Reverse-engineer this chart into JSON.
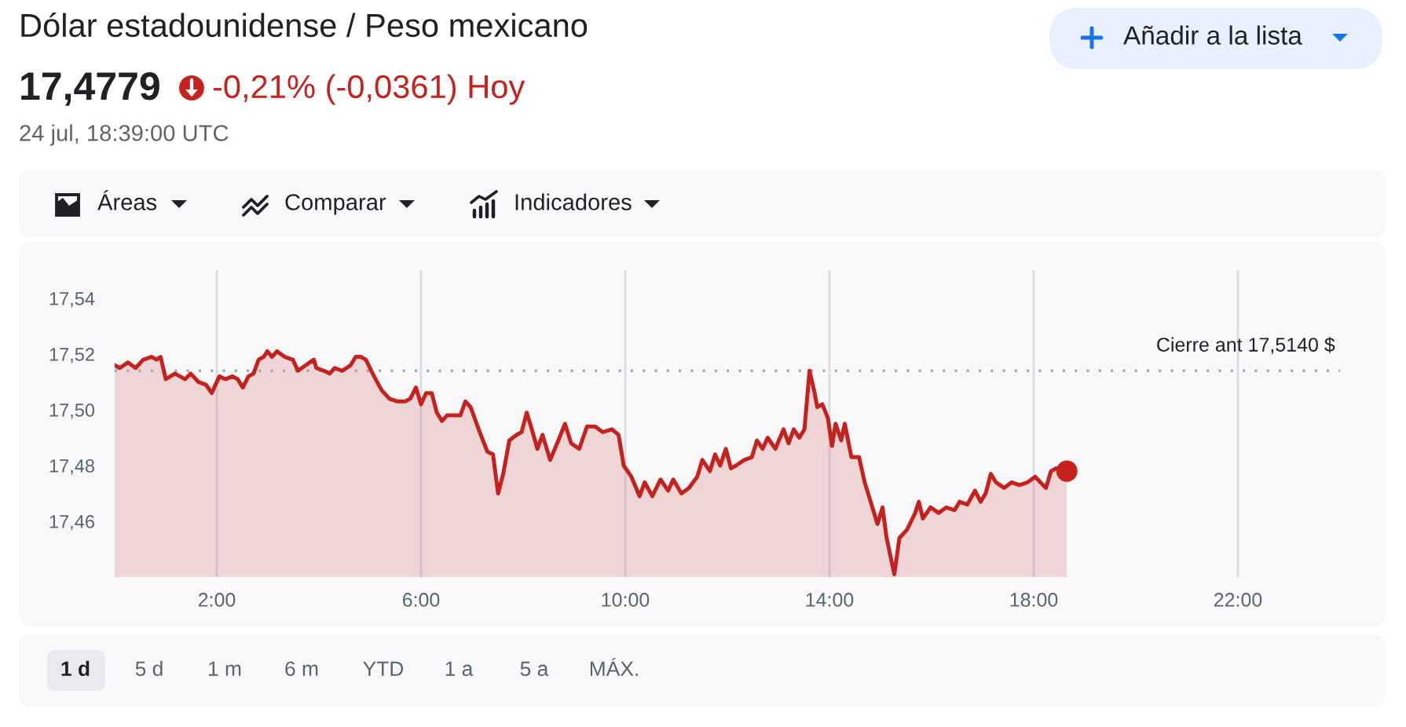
{
  "chart_data": {
    "type": "area",
    "title": "Dólar estadounidense / Peso mexicano",
    "subtitle": "24 jul, 18:39:00 UTC",
    "annotations": [
      "17,4779",
      "-0,21% (-0,0361) Hoy",
      "Añadir a la lista",
      "Áreas",
      "Comparar",
      "Indicadores",
      "1 d",
      "5 d",
      "1 m",
      "6 m",
      "YTD",
      "1 a",
      "5 a",
      "MÁX."
    ],
    "series": [
      {
        "color": "#c5221f",
        "x": [
          0.0,
          0.1,
          0.26,
          0.41,
          0.56,
          0.72,
          0.82,
          0.9,
          1.0,
          1.18,
          1.28,
          1.38,
          1.49,
          1.64,
          1.79,
          1.9,
          2.05,
          2.17,
          2.31,
          2.41,
          2.51,
          2.62,
          2.72,
          2.82,
          2.92,
          2.99,
          3.08,
          3.18,
          3.33,
          3.49,
          3.59,
          3.74,
          3.9,
          3.95,
          4.1,
          4.21,
          4.31,
          4.46,
          4.62,
          4.72,
          4.82,
          4.92,
          5.08,
          5.23,
          5.38,
          5.54,
          5.69,
          5.79,
          5.9,
          6.0,
          6.1,
          6.21,
          6.31,
          6.41,
          6.51,
          6.67,
          6.77,
          6.87,
          6.97,
          7.15,
          7.3,
          7.41,
          7.51,
          7.61,
          7.73,
          7.87,
          7.97,
          8.07,
          8.17,
          8.28,
          8.38,
          8.53,
          8.69,
          8.82,
          8.94,
          9.1,
          9.25,
          9.41,
          9.56,
          9.74,
          9.87,
          9.97,
          10.12,
          10.28,
          10.38,
          10.53,
          10.69,
          10.84,
          10.94,
          11.1,
          11.25,
          11.41,
          11.51,
          11.66,
          11.76,
          11.86,
          11.97,
          12.07,
          12.17,
          12.33,
          12.48,
          12.58,
          12.69,
          12.79,
          12.94,
          13.1,
          13.2,
          13.3,
          13.41,
          13.51,
          13.61,
          13.71,
          13.76,
          13.86,
          13.97,
          14.05,
          14.12,
          14.23,
          14.3,
          14.43,
          14.58,
          14.69,
          14.84,
          14.94,
          15.04,
          15.12,
          15.27,
          15.37,
          15.52,
          15.68,
          15.75,
          15.83,
          15.98,
          16.14,
          16.29,
          16.45,
          16.55,
          16.7,
          16.85,
          16.96,
          17.06,
          17.16,
          17.26,
          17.42,
          17.57,
          17.72,
          17.88,
          18.03,
          18.13,
          18.24,
          18.34,
          18.44,
          18.54,
          18.65
        ],
        "values": [
          17.516,
          17.515,
          17.517,
          17.515,
          17.518,
          17.519,
          17.518,
          17.519,
          17.511,
          17.513,
          17.512,
          17.511,
          17.513,
          17.51,
          17.509,
          17.506,
          17.512,
          17.511,
          17.512,
          17.511,
          17.508,
          17.512,
          17.513,
          17.518,
          17.519,
          17.521,
          17.519,
          17.521,
          17.519,
          17.518,
          17.514,
          17.516,
          17.518,
          17.515,
          17.514,
          17.513,
          17.515,
          17.514,
          17.516,
          17.519,
          17.519,
          17.518,
          17.512,
          17.507,
          17.504,
          17.503,
          17.503,
          17.504,
          17.508,
          17.502,
          17.506,
          17.506,
          17.499,
          17.496,
          17.498,
          17.498,
          17.498,
          17.503,
          17.501,
          17.492,
          17.485,
          17.484,
          17.47,
          17.477,
          17.489,
          17.491,
          17.492,
          17.499,
          17.493,
          17.486,
          17.491,
          17.482,
          17.489,
          17.495,
          17.488,
          17.486,
          17.494,
          17.494,
          17.492,
          17.493,
          17.491,
          17.48,
          17.476,
          17.469,
          17.474,
          17.469,
          17.475,
          17.471,
          17.475,
          17.47,
          17.472,
          17.476,
          17.482,
          17.478,
          17.484,
          17.48,
          17.486,
          17.479,
          17.48,
          17.482,
          17.483,
          17.489,
          17.486,
          17.49,
          17.486,
          17.493,
          17.488,
          17.493,
          17.49,
          17.493,
          17.514,
          17.506,
          17.501,
          17.502,
          17.497,
          17.487,
          17.495,
          17.489,
          17.495,
          17.483,
          17.483,
          17.474,
          17.465,
          17.459,
          17.465,
          17.454,
          17.441,
          17.454,
          17.457,
          17.463,
          17.467,
          17.461,
          17.465,
          17.463,
          17.465,
          17.464,
          17.467,
          17.466,
          17.471,
          17.467,
          17.47,
          17.477,
          17.474,
          17.472,
          17.474,
          17.473,
          17.474,
          17.476,
          17.474,
          17.472,
          17.478,
          17.479,
          17.479,
          17.478
        ]
      },
      {
        "type": "scatter",
        "color": "#c5221f",
        "x": [
          18.65
        ],
        "values": [
          17.478
        ]
      }
    ],
    "xlim": [
      0,
      24
    ],
    "xticks": [
      {
        "value": 2,
        "label": "2:00"
      },
      {
        "value": 6,
        "label": "6:00"
      },
      {
        "value": 10,
        "label": "10:00"
      },
      {
        "value": 14,
        "label": "14:00"
      },
      {
        "value": 18,
        "label": "18:00"
      },
      {
        "value": 22,
        "label": "22:00"
      }
    ],
    "ylim": [
      17.44,
      17.55
    ],
    "yticks": [
      {
        "value": 17.46,
        "label": "17,46"
      },
      {
        "value": 17.48,
        "label": "17,48"
      },
      {
        "value": 17.5,
        "label": "17,50"
      },
      {
        "value": 17.52,
        "label": "17,52"
      },
      {
        "value": 17.54,
        "label": "17,54"
      }
    ],
    "grid": "x",
    "ref_lines": [
      {
        "axis": "y",
        "value": 17.514,
        "label": "Cierre ant 17,5140 $",
        "color": "#9aa0a6",
        "line_style": "dotted"
      }
    ]
  }
}
